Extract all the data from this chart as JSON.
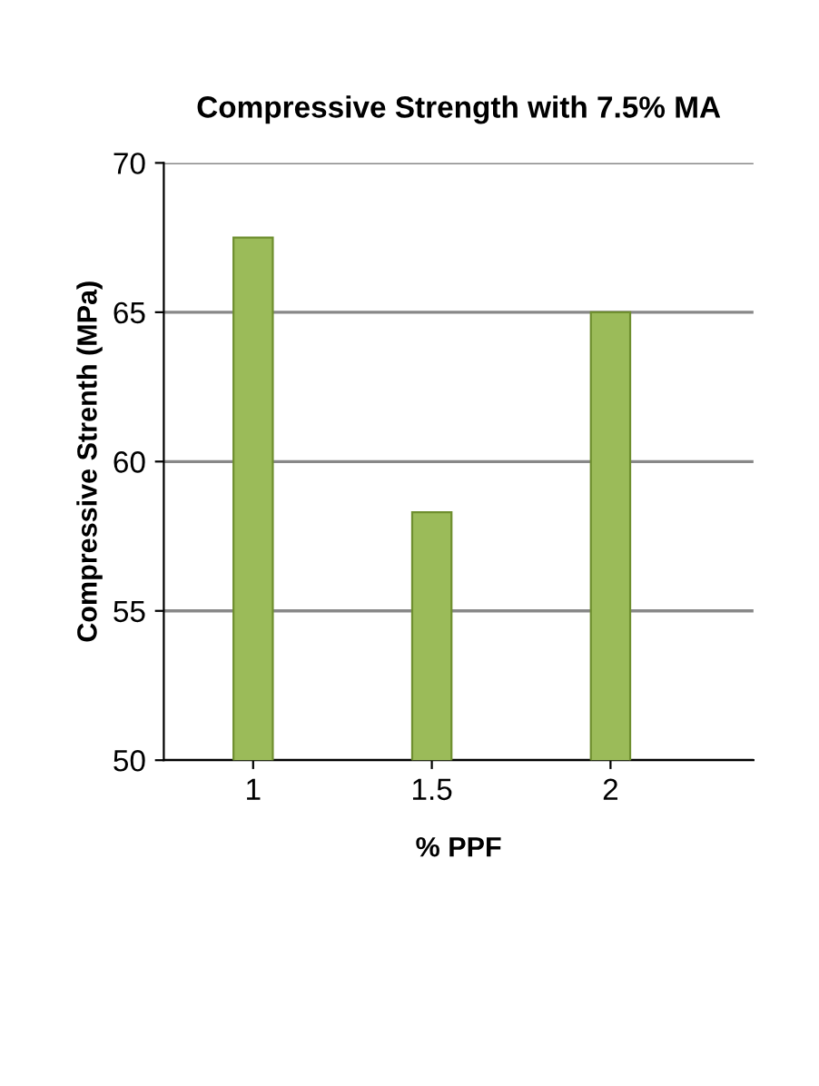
{
  "chart_data": {
    "type": "bar",
    "title": "Compressive Strength with 7.5% MA",
    "xlabel": "% PPF",
    "ylabel": "Compressive Strenth (MPa)",
    "categories": [
      "1",
      "1.5",
      "2"
    ],
    "values": [
      67.5,
      58.3,
      65.0
    ],
    "color": "#9bbb59",
    "ylim": [
      50,
      70
    ],
    "yticks": [
      50,
      55,
      60,
      65,
      70
    ],
    "grid": "y"
  }
}
